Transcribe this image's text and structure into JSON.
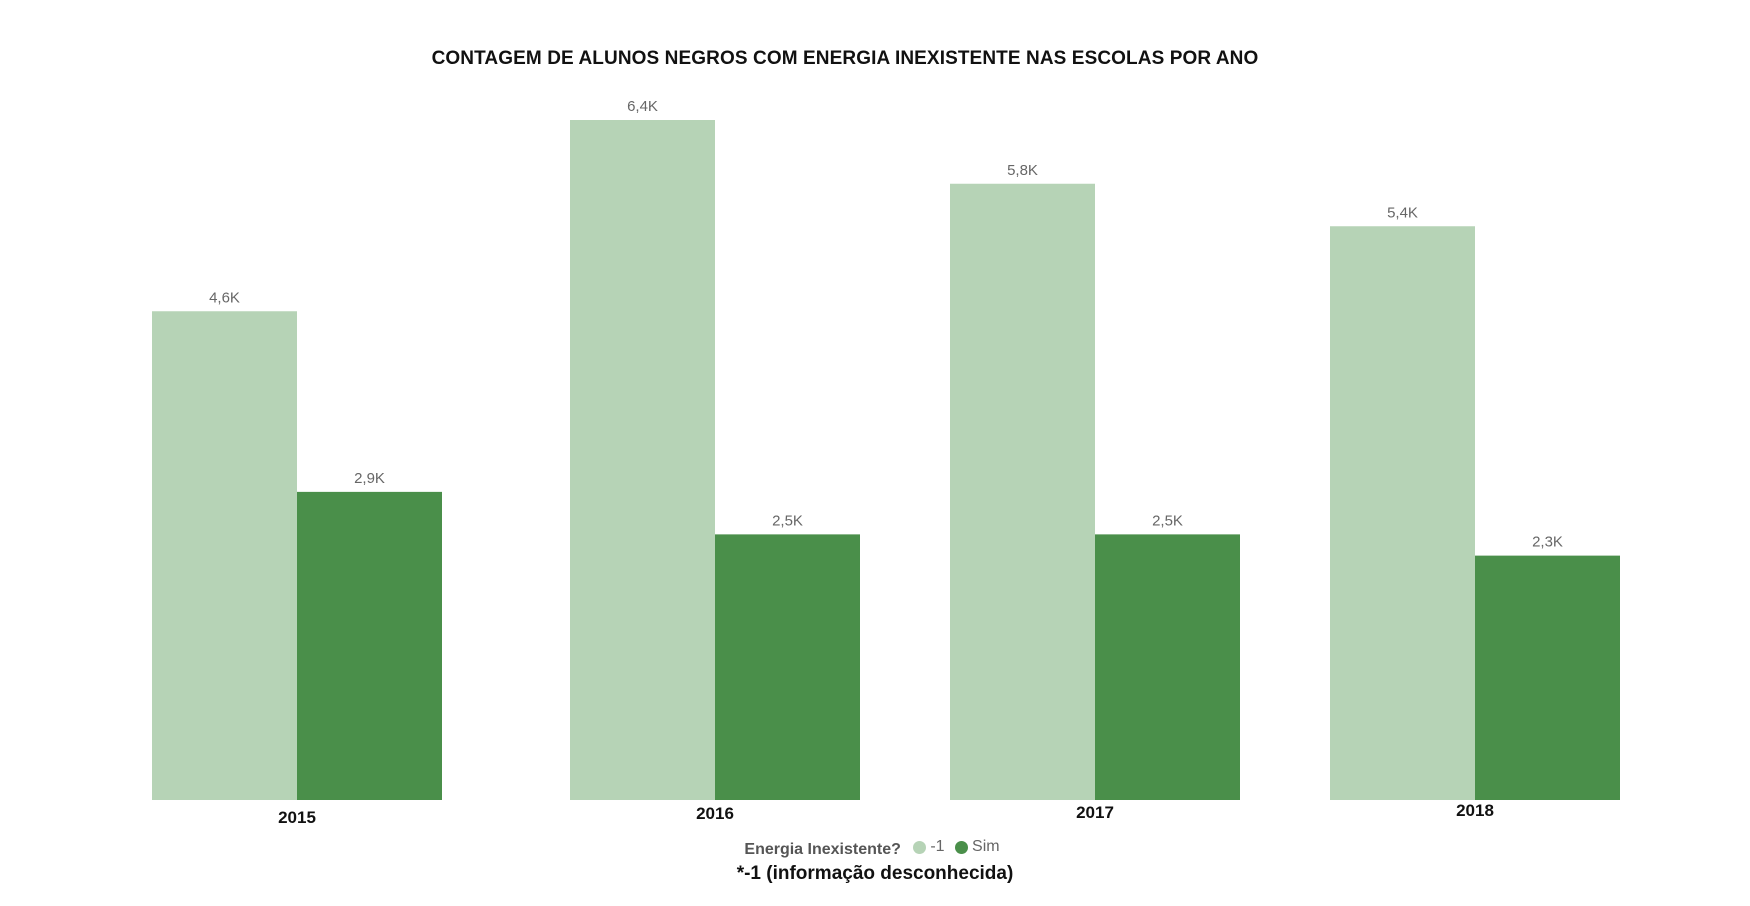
{
  "chart_data": {
    "type": "bar",
    "title": "CONTAGEM DE ALUNOS NEGROS COM ENERGIA INEXISTENTE NAS ESCOLAS POR ANO",
    "categories": [
      "2015",
      "2016",
      "2017",
      "2018"
    ],
    "series": [
      {
        "name": "-1",
        "color": "#b6d3b6",
        "values": [
          4600,
          6400,
          5800,
          5400
        ],
        "labels": [
          "4,6K",
          "6,4K",
          "5,8K",
          "5,4K"
        ]
      },
      {
        "name": "Sim",
        "color": "#4a8f4a",
        "values": [
          2900,
          2500,
          2500,
          2300
        ],
        "labels": [
          "2,9K",
          "2,5K",
          "2,5K",
          "2,3K"
        ]
      }
    ],
    "legend": {
      "title": "Energia Inexistente?",
      "position": "bottom-center"
    },
    "ylim": [
      0,
      6400
    ],
    "grid": false,
    "xlabel": "",
    "ylabel": ""
  },
  "footnote": "*-1 (informação desconhecida)"
}
